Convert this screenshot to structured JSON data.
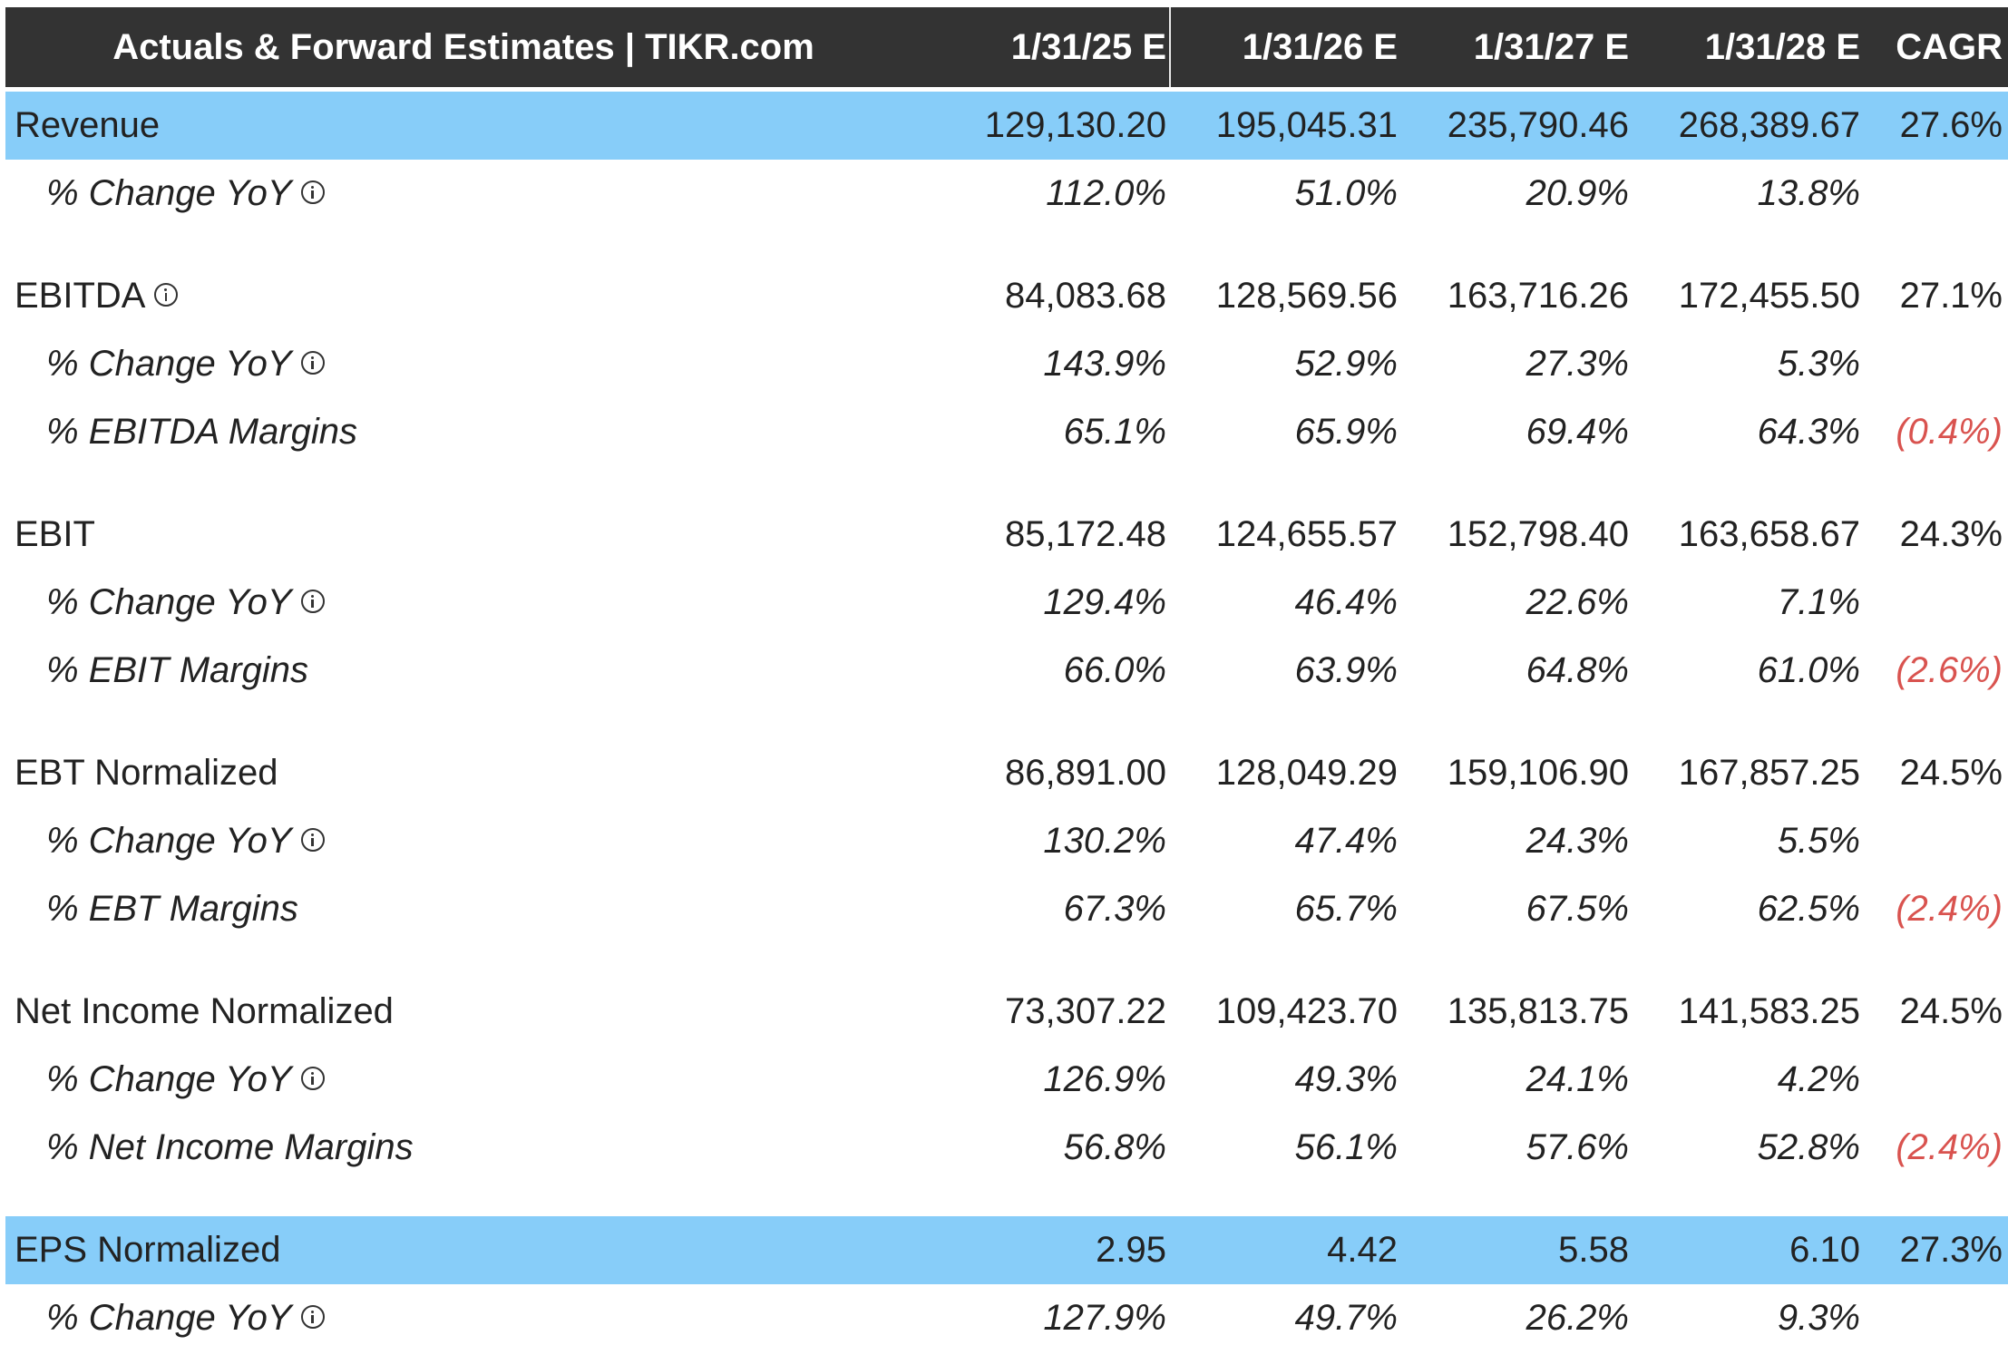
{
  "header": {
    "title": "Actuals & Forward Estimates | TIKR.com",
    "columns": [
      "1/31/25 E",
      "1/31/26 E",
      "1/31/27 E",
      "1/31/28 E",
      "CAGR"
    ]
  },
  "colors": {
    "header_bg": "#333333",
    "highlight_bg": "#87cdf9",
    "negative_text": "#d9534f"
  },
  "rows": [
    {
      "label": "Revenue",
      "values": [
        "129,130.20",
        "195,045.31",
        "235,790.46",
        "268,389.67",
        "27.6%"
      ]
    },
    {
      "label": "% Change YoY",
      "values": [
        "112.0%",
        "51.0%",
        "20.9%",
        "13.8%",
        ""
      ]
    },
    {
      "label": "EBITDA",
      "values": [
        "84,083.68",
        "128,569.56",
        "163,716.26",
        "172,455.50",
        "27.1%"
      ]
    },
    {
      "label": "% Change YoY",
      "values": [
        "143.9%",
        "52.9%",
        "27.3%",
        "5.3%",
        ""
      ]
    },
    {
      "label": "% EBITDA Margins",
      "values": [
        "65.1%",
        "65.9%",
        "69.4%",
        "64.3%",
        "(0.4%)"
      ]
    },
    {
      "label": "EBIT",
      "values": [
        "85,172.48",
        "124,655.57",
        "152,798.40",
        "163,658.67",
        "24.3%"
      ]
    },
    {
      "label": "% Change YoY",
      "values": [
        "129.4%",
        "46.4%",
        "22.6%",
        "7.1%",
        ""
      ]
    },
    {
      "label": "% EBIT Margins",
      "values": [
        "66.0%",
        "63.9%",
        "64.8%",
        "61.0%",
        "(2.6%)"
      ]
    },
    {
      "label": "EBT Normalized",
      "values": [
        "86,891.00",
        "128,049.29",
        "159,106.90",
        "167,857.25",
        "24.5%"
      ]
    },
    {
      "label": "% Change YoY",
      "values": [
        "130.2%",
        "47.4%",
        "24.3%",
        "5.5%",
        ""
      ]
    },
    {
      "label": "% EBT Margins",
      "values": [
        "67.3%",
        "65.7%",
        "67.5%",
        "62.5%",
        "(2.4%)"
      ]
    },
    {
      "label": "Net Income Normalized",
      "values": [
        "73,307.22",
        "109,423.70",
        "135,813.75",
        "141,583.25",
        "24.5%"
      ]
    },
    {
      "label": "% Change YoY",
      "values": [
        "126.9%",
        "49.3%",
        "24.1%",
        "4.2%",
        ""
      ]
    },
    {
      "label": "% Net Income Margins",
      "values": [
        "56.8%",
        "56.1%",
        "57.6%",
        "52.8%",
        "(2.4%)"
      ]
    },
    {
      "label": "EPS Normalized",
      "values": [
        "2.95",
        "4.42",
        "5.58",
        "6.10",
        "27.3%"
      ]
    },
    {
      "label": "% Change YoY",
      "values": [
        "127.9%",
        "49.7%",
        "26.2%",
        "9.3%",
        ""
      ]
    }
  ]
}
